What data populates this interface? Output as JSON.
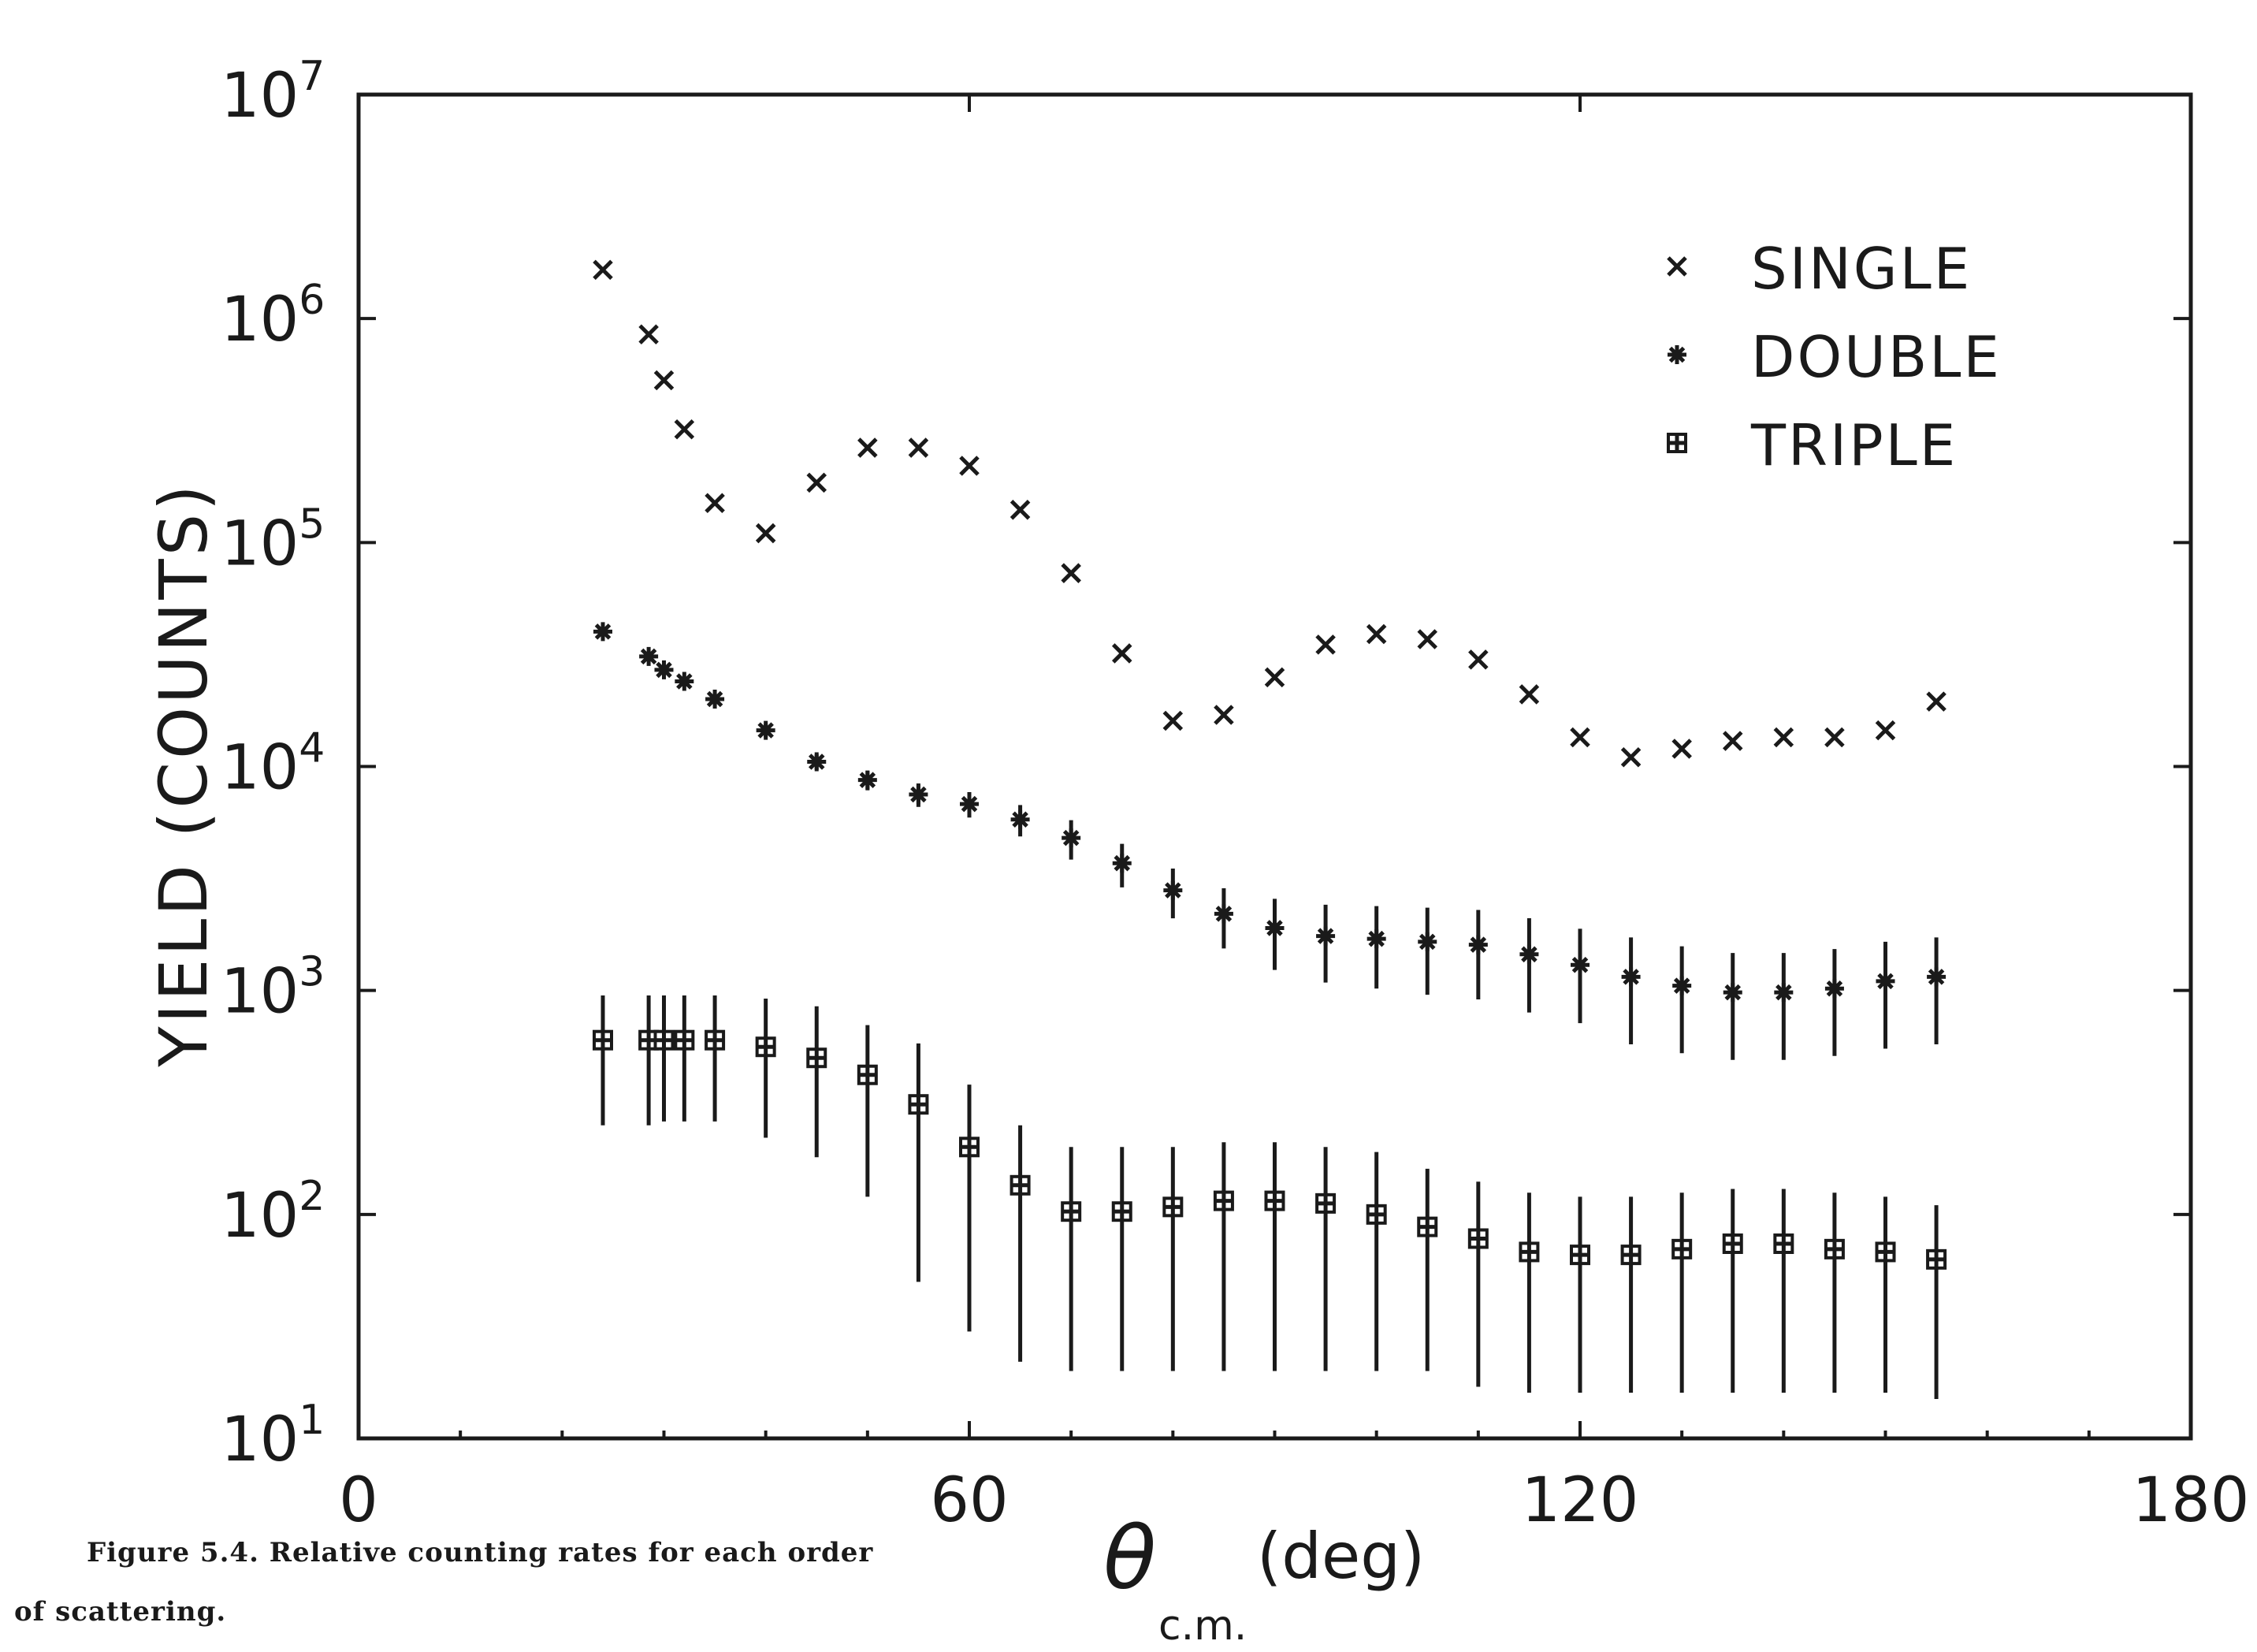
{
  "caption": {
    "line1": "Figure 5.4.  Relative counting rates for each order",
    "line2": "of scattering."
  },
  "chart_data": {
    "type": "scatter",
    "title": "",
    "xlabel": {
      "main": "θ",
      "sub": "c.m.",
      "unit": "(deg)"
    },
    "ylabel": "YIELD (COUNTS)",
    "xlim": [
      0,
      180
    ],
    "ylim": [
      10,
      10000000
    ],
    "yscale": "log",
    "xticks": [
      0,
      60,
      120,
      180
    ],
    "xtick_labels": [
      "0",
      "60",
      "120",
      "180"
    ],
    "yticks": [
      10,
      100,
      1000,
      10000,
      100000,
      1000000,
      10000000
    ],
    "ytick_labels": [
      {
        "base": "10",
        "exp": "1"
      },
      {
        "base": "10",
        "exp": "2"
      },
      {
        "base": "10",
        "exp": "3"
      },
      {
        "base": "10",
        "exp": "4"
      },
      {
        "base": "10",
        "exp": "5"
      },
      {
        "base": "10",
        "exp": "6"
      },
      {
        "base": "10",
        "exp": "7"
      }
    ],
    "grid": false,
    "legend_position": "top-right",
    "series": [
      {
        "name": "SINGLE",
        "marker": "x",
        "points": [
          [
            24,
            1650000
          ],
          [
            28.5,
            850000
          ],
          [
            30,
            530000
          ],
          [
            32,
            320000
          ],
          [
            35,
            150000
          ],
          [
            40,
            110000
          ],
          [
            45,
            185000
          ],
          [
            50,
            265000
          ],
          [
            55,
            265000
          ],
          [
            60,
            220000
          ],
          [
            65,
            140000
          ],
          [
            70,
            73000
          ],
          [
            75,
            32000
          ],
          [
            80,
            16000
          ],
          [
            85,
            17000
          ],
          [
            90,
            25000
          ],
          [
            95,
            35000
          ],
          [
            100,
            39000
          ],
          [
            105,
            37000
          ],
          [
            110,
            30000
          ],
          [
            115,
            21000
          ],
          [
            120,
            13500
          ],
          [
            125,
            11000
          ],
          [
            130,
            12000
          ],
          [
            135,
            13000
          ],
          [
            140,
            13500
          ],
          [
            145,
            13500
          ],
          [
            150,
            14500
          ],
          [
            155,
            19500
          ]
        ]
      },
      {
        "name": "DOUBLE",
        "marker": "asterisk",
        "points": [
          [
            24,
            40000,
            0.05
          ],
          [
            28.5,
            31000,
            0.05
          ],
          [
            30,
            27000,
            0.05
          ],
          [
            32,
            24000,
            0.05
          ],
          [
            35,
            20000,
            0.06
          ],
          [
            40,
            14500,
            0.07
          ],
          [
            45,
            10500,
            0.08
          ],
          [
            50,
            8700,
            0.1
          ],
          [
            55,
            7500,
            0.12
          ],
          [
            60,
            6800,
            0.13
          ],
          [
            65,
            5800,
            0.16
          ],
          [
            70,
            4800,
            0.2
          ],
          [
            75,
            3700,
            0.22
          ],
          [
            80,
            2800,
            0.25
          ],
          [
            85,
            2200,
            0.3
          ],
          [
            90,
            1900,
            0.35
          ],
          [
            95,
            1750,
            0.38
          ],
          [
            100,
            1700,
            0.4
          ],
          [
            105,
            1650,
            0.42
          ],
          [
            110,
            1600,
            0.43
          ],
          [
            115,
            1450,
            0.45
          ],
          [
            120,
            1300,
            0.45
          ],
          [
            125,
            1150,
            0.5
          ],
          [
            130,
            1050,
            0.5
          ],
          [
            135,
            980,
            0.5
          ],
          [
            140,
            980,
            0.5
          ],
          [
            145,
            1020,
            0.5
          ],
          [
            150,
            1100,
            0.5
          ],
          [
            155,
            1150,
            0.5
          ]
        ]
      },
      {
        "name": "TRIPLE",
        "marker": "boxed-plus",
        "points": [
          [
            24,
            600,
            950,
            250
          ],
          [
            28.5,
            600,
            950,
            250
          ],
          [
            30,
            600,
            950,
            260
          ],
          [
            32,
            600,
            950,
            260
          ],
          [
            35,
            600,
            950,
            260
          ],
          [
            40,
            560,
            920,
            220
          ],
          [
            45,
            500,
            850,
            180
          ],
          [
            50,
            420,
            700,
            120
          ],
          [
            55,
            310,
            580,
            50
          ],
          [
            60,
            200,
            380,
            30
          ],
          [
            65,
            135,
            250,
            22
          ],
          [
            70,
            103,
            200,
            20
          ],
          [
            75,
            103,
            200,
            20
          ],
          [
            80,
            108,
            200,
            20
          ],
          [
            85,
            115,
            210,
            20
          ],
          [
            90,
            115,
            210,
            20
          ],
          [
            95,
            112,
            200,
            20
          ],
          [
            100,
            100,
            190,
            20
          ],
          [
            105,
            88,
            160,
            20
          ],
          [
            110,
            78,
            140,
            17
          ],
          [
            115,
            68,
            125,
            16
          ],
          [
            120,
            66,
            120,
            16
          ],
          [
            125,
            66,
            120,
            16
          ],
          [
            130,
            70,
            125,
            16
          ],
          [
            135,
            74,
            130,
            16
          ],
          [
            140,
            74,
            130,
            16
          ],
          [
            145,
            70,
            125,
            16
          ],
          [
            150,
            68,
            120,
            16
          ],
          [
            155,
            63,
            110,
            15
          ]
        ]
      }
    ]
  }
}
